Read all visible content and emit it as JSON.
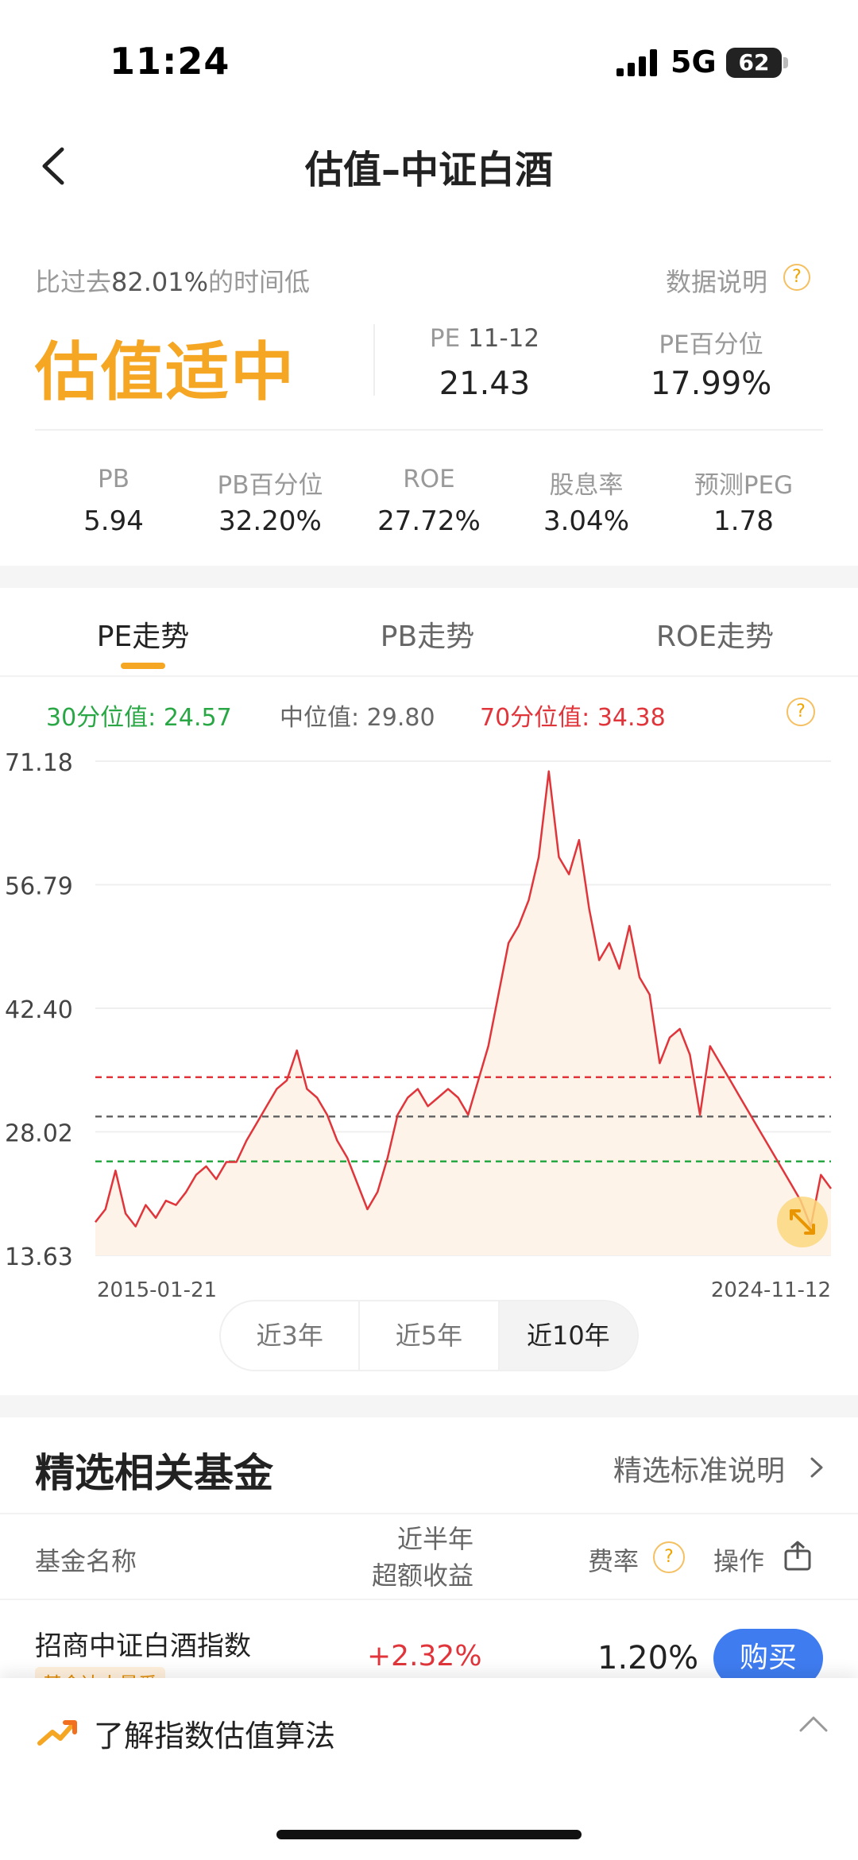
{
  "status_bar": {
    "time": "11:24",
    "network": "5G",
    "battery": "62"
  },
  "nav": {
    "title": "估值–中证白酒"
  },
  "summary": {
    "prefix": "比过去",
    "pct": "82.01%",
    "suffix": "的时间低",
    "data_note": "数据说明",
    "help": "?",
    "verdict": "估值适中",
    "pe_label": "PE",
    "pe_date": "11-12",
    "pe_value": "21.43",
    "pe_pct_label": "PE百分位",
    "pe_pct_value": "17.99%"
  },
  "metrics": [
    {
      "label": "PB",
      "value": "5.94"
    },
    {
      "label": "PB百分位",
      "value": "32.20%"
    },
    {
      "label": "ROE",
      "value": "27.72%"
    },
    {
      "label": "股息率",
      "value": "3.04%"
    },
    {
      "label": "预测PEG",
      "value": "1.78"
    }
  ],
  "tabs": [
    "PE走势",
    "PB走势",
    "ROE走势"
  ],
  "legend": {
    "p30": "30分位值: 24.57",
    "median": "中位值: 29.80",
    "p70": "70分位值: 34.38"
  },
  "colors": {
    "accent": "#f5a623",
    "line": "#e0353b",
    "p30": "#2aa745",
    "median": "#666666",
    "p70": "#e0353b",
    "buy": "#3f7cf0"
  },
  "chart_data": {
    "type": "line",
    "y_ticks": [
      "71.18",
      "56.79",
      "42.40",
      "28.02",
      "13.63"
    ],
    "ylim": [
      13.63,
      71.18
    ],
    "x_start_label": "2015-01-21",
    "x_end_label": "2024-11-12",
    "reference_lines": [
      {
        "name": "30分位值",
        "value": 24.57,
        "color": "#2aa745"
      },
      {
        "name": "中位值",
        "value": 29.8,
        "color": "#666666"
      },
      {
        "name": "70分位值",
        "value": 34.38,
        "color": "#e0353b"
      }
    ],
    "series": [
      {
        "values": [
          17.5,
          19,
          23.5,
          18.5,
          17,
          19.5,
          18,
          20,
          19.5,
          21,
          23,
          24,
          22.5,
          24.5,
          24.5,
          27,
          29,
          31,
          33,
          34,
          37.5,
          33,
          32,
          30,
          27,
          25,
          22,
          19,
          21,
          25,
          30,
          32,
          33,
          31,
          32,
          33,
          32,
          30,
          34,
          38,
          44,
          50,
          52,
          55,
          60,
          70,
          60,
          58,
          62,
          54,
          48,
          50,
          47,
          52,
          46,
          44,
          36,
          39,
          40,
          37,
          30,
          38,
          36,
          34,
          32,
          30,
          28,
          26,
          24,
          22,
          20,
          17,
          23,
          21.4
        ]
      }
    ]
  },
  "range_buttons": [
    "近3年",
    "近5年",
    "近10年"
  ],
  "funds": {
    "title": "精选相关基金",
    "note": "精选标准说明",
    "col_name": "基金名称",
    "col_return_1": "近半年",
    "col_return_2": "超额收益",
    "col_fee": "费率",
    "col_op": "操作",
    "rows": [
      {
        "name": "招商中证白酒指数",
        "tag": "基金达人最爱",
        "return": "+2.32%",
        "fee": "1.20%",
        "action": "购买"
      }
    ]
  },
  "footer": {
    "text": "了解指数估值算法"
  }
}
